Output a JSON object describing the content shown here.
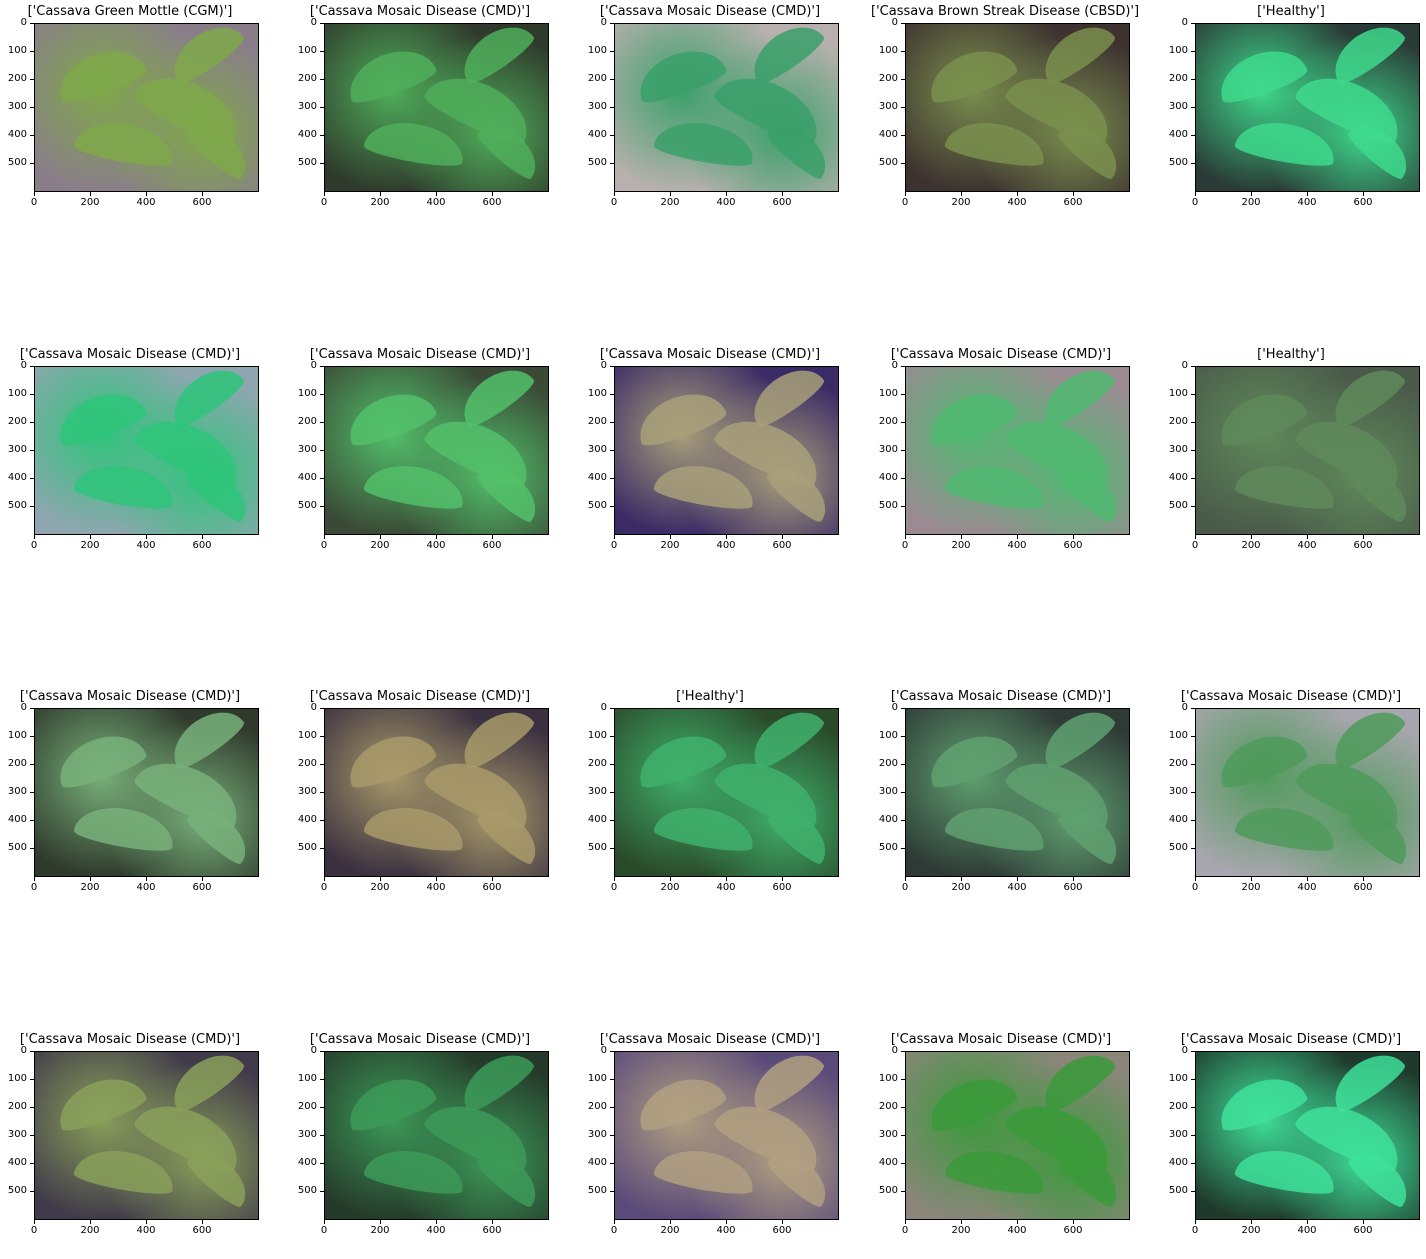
{
  "axes": {
    "y_ticks": [
      "0",
      "100",
      "200",
      "300",
      "400",
      "500"
    ],
    "x_ticks": [
      "0",
      "200",
      "400",
      "600"
    ]
  },
  "panels": [
    {
      "title": "['Cassava Green Mottle (CGM)']",
      "bg": "#8a7d8a",
      "leaf": "#7fa84a"
    },
    {
      "title": "['Cassava Mosaic Disease (CMD)']",
      "bg": "#2f3a2c",
      "leaf": "#4fae5a"
    },
    {
      "title": "['Cassava Mosaic Disease (CMD)']",
      "bg": "#b8b0ae",
      "leaf": "#3aa06a"
    },
    {
      "title": "['Cassava Brown Streak Disease (CBSD)']",
      "bg": "#3d3230",
      "leaf": "#7a8f4e"
    },
    {
      "title": "['Healthy']",
      "bg": "#2a3a36",
      "leaf": "#3ed98c"
    },
    {
      "title": "['Cassava Mosaic Disease (CMD)']",
      "bg": "#8fa6b0",
      "leaf": "#2ec47a"
    },
    {
      "title": "['Cassava Mosaic Disease (CMD)']",
      "bg": "#3a4a36",
      "leaf": "#52c06a"
    },
    {
      "title": "['Cassava Mosaic Disease (CMD)']",
      "bg": "#3a2a66",
      "leaf": "#a8a07a"
    },
    {
      "title": "['Cassava Mosaic Disease (CMD)']",
      "bg": "#9a8a92",
      "leaf": "#4fb870"
    },
    {
      "title": "['Healthy']",
      "bg": "#4a5a4a",
      "leaf": "#5f8a5a"
    },
    {
      "title": "['Cassava Mosaic Disease (CMD)']",
      "bg": "#2f3a2c",
      "leaf": "#78b07a"
    },
    {
      "title": "['Cassava Mosaic Disease (CMD)']",
      "bg": "#3a3040",
      "leaf": "#a89a6a"
    },
    {
      "title": "['Healthy']",
      "bg": "#2a4a2a",
      "leaf": "#3fb06c"
    },
    {
      "title": "['Cassava Mosaic Disease (CMD)']",
      "bg": "#2e3a36",
      "leaf": "#5fa070"
    },
    {
      "title": "['Cassava Mosaic Disease (CMD)']",
      "bg": "#a8a6ae",
      "leaf": "#4f9a5a"
    },
    {
      "title": "['Cassava Mosaic Disease (CMD)']",
      "bg": "#403a4a",
      "leaf": "#8aa05a"
    },
    {
      "title": "['Cassava Mosaic Disease (CMD)']",
      "bg": "#253a2a",
      "leaf": "#3c9a58"
    },
    {
      "title": "['Cassava Mosaic Disease (CMD)']",
      "bg": "#5a4a7a",
      "leaf": "#b0a080"
    },
    {
      "title": "['Cassava Mosaic Disease (CMD)']",
      "bg": "#8a867a",
      "leaf": "#3a9a3a"
    },
    {
      "title": "['Cassava Mosaic Disease (CMD)']",
      "bg": "#1f3a2c",
      "leaf": "#3ee09a"
    }
  ]
}
